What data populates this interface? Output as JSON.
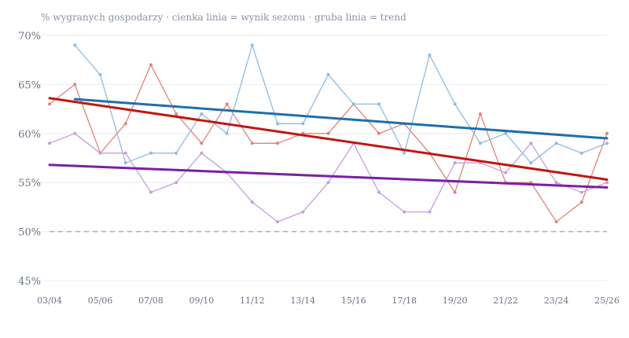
{
  "chart_data": {
    "type": "line",
    "subtitle": "% wygranych gospodarzy · cienka linia = wynik sezonu · gruba linia = trend",
    "x_tick_labels": [
      "03/04",
      "05/06",
      "07/08",
      "09/10",
      "11/12",
      "13/14",
      "15/16",
      "17/18",
      "19/20",
      "21/22",
      "23/24",
      "25/26"
    ],
    "y_tick_labels": [
      "45%",
      "50%",
      "55%",
      "60%",
      "65%",
      "70%"
    ],
    "ylim": [
      45,
      70
    ],
    "y_ticks": [
      45,
      50,
      55,
      60,
      65,
      70
    ],
    "x_range": [
      2003,
      2025
    ],
    "x": [
      2003,
      2004,
      2005,
      2006,
      2007,
      2008,
      2009,
      2010,
      2011,
      2012,
      2013,
      2014,
      2015,
      2016,
      2017,
      2018,
      2019,
      2020,
      2021,
      2022,
      2023,
      2024,
      2025
    ],
    "reference_line": {
      "value": 50,
      "color": "#b9a3cf",
      "style": "dashed"
    },
    "grid": "horizontal",
    "series": [
      {
        "color": "#e0837a",
        "trend_color": "#c0170f",
        "values": [
          63,
          65,
          58,
          61,
          67,
          62,
          59,
          63,
          59,
          59,
          60,
          60,
          63,
          60,
          61,
          58,
          54,
          62,
          55,
          55,
          51,
          53,
          60
        ],
        "trend": [
          63.6,
          55.3
        ]
      },
      {
        "color": "#8fbcdf",
        "trend_color": "#1f6fad",
        "values": [
          null,
          69,
          66,
          57,
          58,
          58,
          62,
          60,
          69,
          61,
          61,
          66,
          63,
          63,
          58,
          68,
          63,
          59,
          60,
          57,
          59,
          58,
          59
        ],
        "trend": [
          63.5,
          59.5
        ]
      },
      {
        "color": "#c79edb",
        "trend_color": "#7b1fa2",
        "values": [
          59,
          60,
          58,
          58,
          54,
          55,
          58,
          56,
          53,
          51,
          52,
          55,
          59,
          54,
          52,
          52,
          57,
          57,
          56,
          59,
          55,
          54,
          55
        ],
        "trend": [
          56.8,
          54.5
        ]
      }
    ]
  }
}
